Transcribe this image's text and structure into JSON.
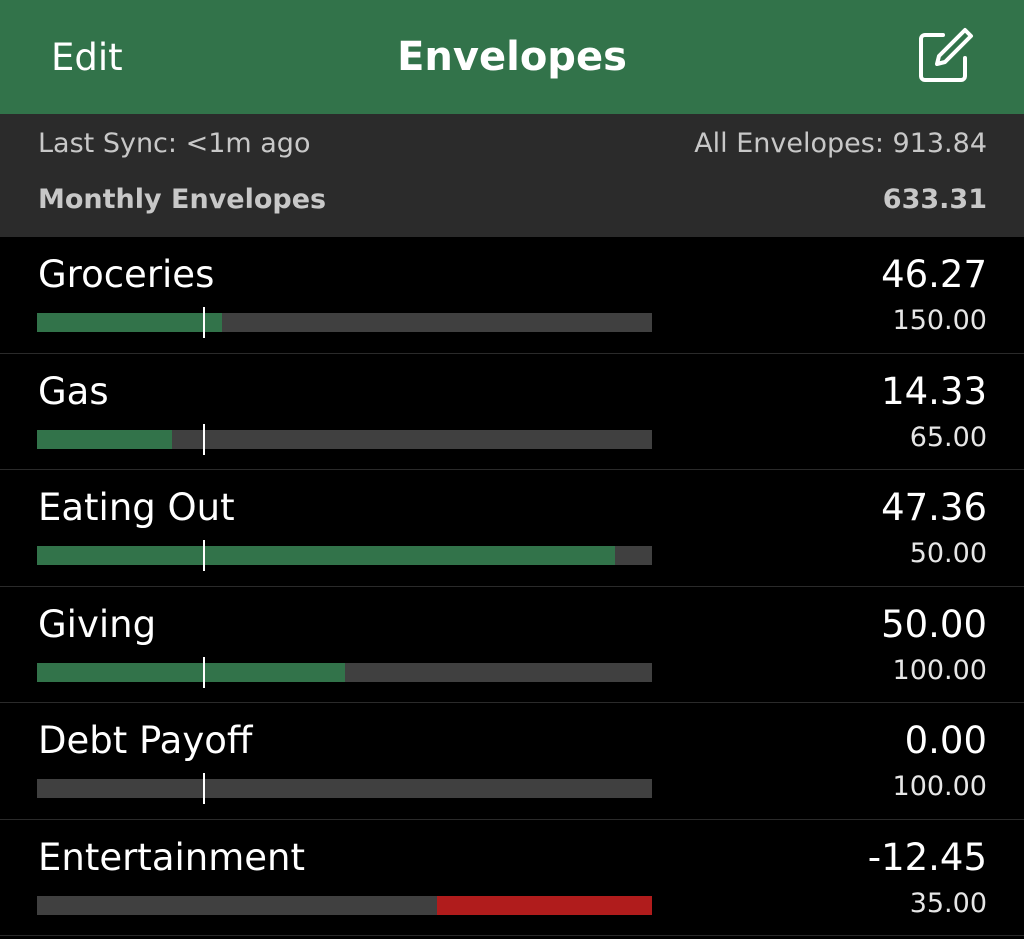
{
  "nav": {
    "edit_label": "Edit",
    "title": "Envelopes",
    "compose_icon": "compose-icon"
  },
  "summary": {
    "last_sync": "Last Sync: <1m ago",
    "all_envelopes": "All Envelopes: 913.84",
    "section_title": "Monthly Envelopes",
    "section_total": "633.31"
  },
  "colors": {
    "nav_background": "#32734a",
    "progress_fill": "#32734a",
    "overspent_fill": "#b01c1c",
    "track": "#404040",
    "summary_background": "#2b2b2b"
  },
  "pace_fraction": 0.27,
  "envelopes": [
    {
      "name": "Groceries",
      "amount": "46.27",
      "budget": "150.00",
      "fill_fraction": 0.3,
      "overspent": false
    },
    {
      "name": "Gas",
      "amount": "14.33",
      "budget": "65.00",
      "fill_fraction": 0.22,
      "overspent": false
    },
    {
      "name": "Eating Out",
      "amount": "47.36",
      "budget": "50.00",
      "fill_fraction": 0.94,
      "overspent": false
    },
    {
      "name": "Giving",
      "amount": "50.00",
      "budget": "100.00",
      "fill_fraction": 0.5,
      "overspent": false
    },
    {
      "name": "Debt Payoff",
      "amount": "0.00",
      "budget": "100.00",
      "fill_fraction": 0.0,
      "overspent": false
    },
    {
      "name": "Entertainment",
      "amount": "-12.45",
      "budget": "35.00",
      "fill_fraction": 0.35,
      "overspent": true
    }
  ]
}
